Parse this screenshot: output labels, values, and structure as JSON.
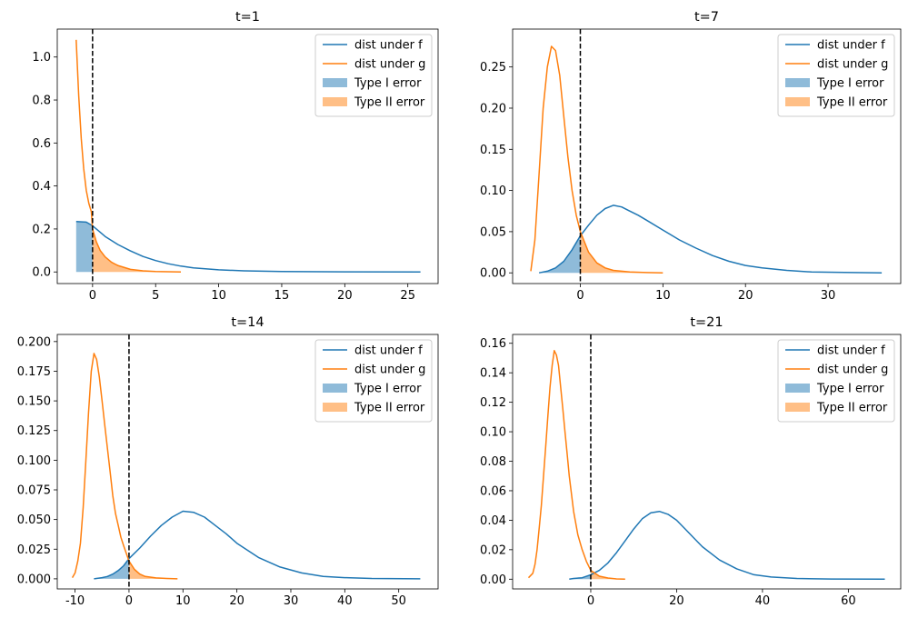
{
  "colors": {
    "f": "#1f77b4",
    "g": "#ff7f0e",
    "threshold": "#000000"
  },
  "chart_data": [
    {
      "type": "line",
      "title": "t=1",
      "xlabel": "",
      "ylabel": "",
      "xlim": [
        -2.8,
        27.4
      ],
      "ylim": [
        -0.054,
        1.13
      ],
      "xticks": [
        0,
        5,
        10,
        15,
        20,
        25
      ],
      "yticks": [
        0.0,
        0.2,
        0.4,
        0.6,
        0.8,
        1.0
      ],
      "ytick_labels": [
        "0.0",
        "0.2",
        "0.4",
        "0.6",
        "0.8",
        "1.0"
      ],
      "threshold_x": 0,
      "legend_position": "top-right",
      "legend": [
        "dist under f",
        "dist under g",
        "Type I error",
        "Type II error"
      ],
      "series": [
        {
          "name": "dist under f",
          "x": [
            -1.3,
            -0.5,
            0,
            0.5,
            1,
            2,
            3,
            4,
            5,
            6,
            7,
            8,
            10,
            12,
            15,
            20,
            26
          ],
          "y": [
            0.235,
            0.232,
            0.215,
            0.19,
            0.165,
            0.128,
            0.098,
            0.072,
            0.053,
            0.038,
            0.027,
            0.019,
            0.01,
            0.005,
            0.002,
            0.0005,
            0
          ]
        },
        {
          "name": "dist under g",
          "x": [
            -1.3,
            -1.1,
            -0.9,
            -0.7,
            -0.5,
            -0.3,
            -0.1,
            0,
            0.3,
            0.6,
            1,
            1.5,
            2,
            3,
            4,
            5,
            7
          ],
          "y": [
            1.08,
            0.82,
            0.62,
            0.48,
            0.38,
            0.32,
            0.28,
            0.2,
            0.14,
            0.1,
            0.07,
            0.045,
            0.03,
            0.012,
            0.005,
            0.002,
            0
          ]
        }
      ],
      "type1_area": {
        "name": "Type I error",
        "series": "dist under f",
        "x_range": [
          -1.3,
          0
        ]
      },
      "type2_area": {
        "name": "Type II error",
        "series": "dist under g",
        "x_range": [
          0,
          7
        ]
      }
    },
    {
      "type": "line",
      "title": "t=7",
      "xlabel": "",
      "ylabel": "",
      "xlim": [
        -8.2,
        38.8
      ],
      "ylim": [
        -0.013,
        0.296
      ],
      "xticks": [
        0,
        10,
        20,
        30
      ],
      "yticks": [
        0.0,
        0.05,
        0.1,
        0.15,
        0.2,
        0.25
      ],
      "ytick_labels": [
        "0.00",
        "0.05",
        "0.10",
        "0.15",
        "0.20",
        "0.25"
      ],
      "threshold_x": 0,
      "legend_position": "top-right",
      "legend": [
        "dist under f",
        "dist under g",
        "Type I error",
        "Type II error"
      ],
      "series": [
        {
          "name": "dist under f",
          "x": [
            -5,
            -4,
            -3,
            -2,
            -1,
            0,
            1,
            2,
            3,
            4,
            5,
            6,
            7,
            8,
            10,
            12,
            14,
            16,
            18,
            20,
            22,
            25,
            28,
            32,
            36.5
          ],
          "y": [
            0.0,
            0.002,
            0.006,
            0.014,
            0.028,
            0.045,
            0.058,
            0.07,
            0.078,
            0.082,
            0.08,
            0.075,
            0.07,
            0.064,
            0.052,
            0.04,
            0.03,
            0.021,
            0.014,
            0.009,
            0.006,
            0.003,
            0.001,
            0.0005,
            0
          ]
        },
        {
          "name": "dist under g",
          "x": [
            -6,
            -5.5,
            -5,
            -4.5,
            -4,
            -3.5,
            -3,
            -2.5,
            -2,
            -1.5,
            -1,
            -0.5,
            0,
            1,
            2,
            3,
            4,
            6,
            8,
            10
          ],
          "y": [
            0.002,
            0.04,
            0.12,
            0.2,
            0.25,
            0.275,
            0.27,
            0.24,
            0.19,
            0.14,
            0.1,
            0.07,
            0.05,
            0.025,
            0.012,
            0.006,
            0.003,
            0.001,
            0.0003,
            0
          ]
        }
      ],
      "type1_area": {
        "name": "Type I error",
        "series": "dist under f",
        "x_range": [
          -5,
          0
        ]
      },
      "type2_area": {
        "name": "Type II error",
        "series": "dist under g",
        "x_range": [
          0,
          10
        ]
      }
    },
    {
      "type": "line",
      "title": "t=14",
      "xlabel": "",
      "ylabel": "",
      "xlim": [
        -13.3,
        57.3
      ],
      "ylim": [
        -0.0085,
        0.206
      ],
      "xticks": [
        -10,
        0,
        10,
        20,
        30,
        40,
        50
      ],
      "yticks": [
        0.0,
        0.025,
        0.05,
        0.075,
        0.1,
        0.125,
        0.15,
        0.175,
        0.2
      ],
      "ytick_labels": [
        "0.000",
        "0.025",
        "0.050",
        "0.075",
        "0.100",
        "0.125",
        "0.150",
        "0.175",
        "0.200"
      ],
      "threshold_x": 0,
      "legend_position": "top-right",
      "legend": [
        "dist under f",
        "dist under g",
        "Type I error",
        "Type II error"
      ],
      "series": [
        {
          "name": "dist under f",
          "x": [
            -6.5,
            -5,
            -4,
            -3,
            -2,
            -1,
            0,
            2,
            4,
            6,
            8,
            10,
            12,
            14,
            16,
            18,
            20,
            24,
            28,
            32,
            36,
            40,
            45,
            54
          ],
          "y": [
            0.0,
            0.001,
            0.002,
            0.004,
            0.007,
            0.011,
            0.017,
            0.026,
            0.036,
            0.045,
            0.052,
            0.057,
            0.056,
            0.052,
            0.045,
            0.038,
            0.03,
            0.018,
            0.01,
            0.005,
            0.002,
            0.001,
            0.0003,
            0
          ]
        },
        {
          "name": "dist under g",
          "x": [
            -10.5,
            -10,
            -9.5,
            -9,
            -8.5,
            -8,
            -7.5,
            -7,
            -6.5,
            -6,
            -5.5,
            -5,
            -4.5,
            -4,
            -3.5,
            -3,
            -2.5,
            -2,
            -1.5,
            -1,
            0,
            1,
            2,
            3,
            5,
            7,
            9
          ],
          "y": [
            0.001,
            0.005,
            0.015,
            0.03,
            0.06,
            0.1,
            0.14,
            0.175,
            0.19,
            0.185,
            0.17,
            0.15,
            0.13,
            0.11,
            0.09,
            0.07,
            0.055,
            0.045,
            0.035,
            0.028,
            0.015,
            0.008,
            0.004,
            0.002,
            0.0008,
            0.0003,
            0
          ]
        }
      ],
      "type1_area": {
        "name": "Type I error",
        "series": "dist under f",
        "x_range": [
          -6.5,
          0
        ]
      },
      "type2_area": {
        "name": "Type II error",
        "series": "dist under g",
        "x_range": [
          0,
          9
        ]
      }
    },
    {
      "type": "line",
      "title": "t=21",
      "xlabel": "",
      "ylabel": "",
      "xlim": [
        -18.2,
        72.2
      ],
      "ylim": [
        -0.0066,
        0.166
      ],
      "xticks": [
        0,
        20,
        40,
        60
      ],
      "yticks": [
        0.0,
        0.02,
        0.04,
        0.06,
        0.08,
        0.1,
        0.12,
        0.14,
        0.16
      ],
      "ytick_labels": [
        "0.00",
        "0.02",
        "0.04",
        "0.06",
        "0.08",
        "0.10",
        "0.12",
        "0.14",
        "0.16"
      ],
      "threshold_x": 0,
      "legend_position": "top-right",
      "legend": [
        "dist under f",
        "dist under g",
        "Type I error",
        "Type II error"
      ],
      "series": [
        {
          "name": "dist under f",
          "x": [
            -5,
            -4,
            -2,
            0,
            2,
            4,
            6,
            8,
            10,
            12,
            14,
            16,
            18,
            20,
            22,
            24,
            26,
            30,
            34,
            38,
            42,
            48,
            56,
            68.5
          ],
          "y": [
            0.0,
            0.0005,
            0.001,
            0.003,
            0.006,
            0.011,
            0.018,
            0.026,
            0.034,
            0.041,
            0.045,
            0.046,
            0.044,
            0.04,
            0.034,
            0.028,
            0.022,
            0.013,
            0.007,
            0.003,
            0.0015,
            0.0005,
            0.0001,
            0
          ]
        },
        {
          "name": "dist under g",
          "x": [
            -14.5,
            -13.5,
            -13,
            -12.5,
            -12,
            -11.5,
            -11,
            -10.5,
            -10,
            -9.5,
            -9,
            -8.5,
            -8,
            -7.5,
            -7,
            -6.5,
            -6,
            -5.5,
            -5,
            -4.5,
            -4,
            -3,
            -2,
            -1,
            0,
            2,
            4,
            6,
            8
          ],
          "y": [
            0.001,
            0.004,
            0.01,
            0.02,
            0.035,
            0.05,
            0.07,
            0.09,
            0.11,
            0.13,
            0.145,
            0.155,
            0.152,
            0.145,
            0.13,
            0.115,
            0.1,
            0.085,
            0.07,
            0.058,
            0.046,
            0.03,
            0.02,
            0.012,
            0.006,
            0.002,
            0.0008,
            0.0002,
            0
          ]
        }
      ],
      "type1_area": {
        "name": "Type I error",
        "series": "dist under f",
        "x_range": [
          -5,
          0
        ]
      },
      "type2_area": {
        "name": "Type II error",
        "series": "dist under g",
        "x_range": [
          0,
          8
        ]
      }
    }
  ]
}
